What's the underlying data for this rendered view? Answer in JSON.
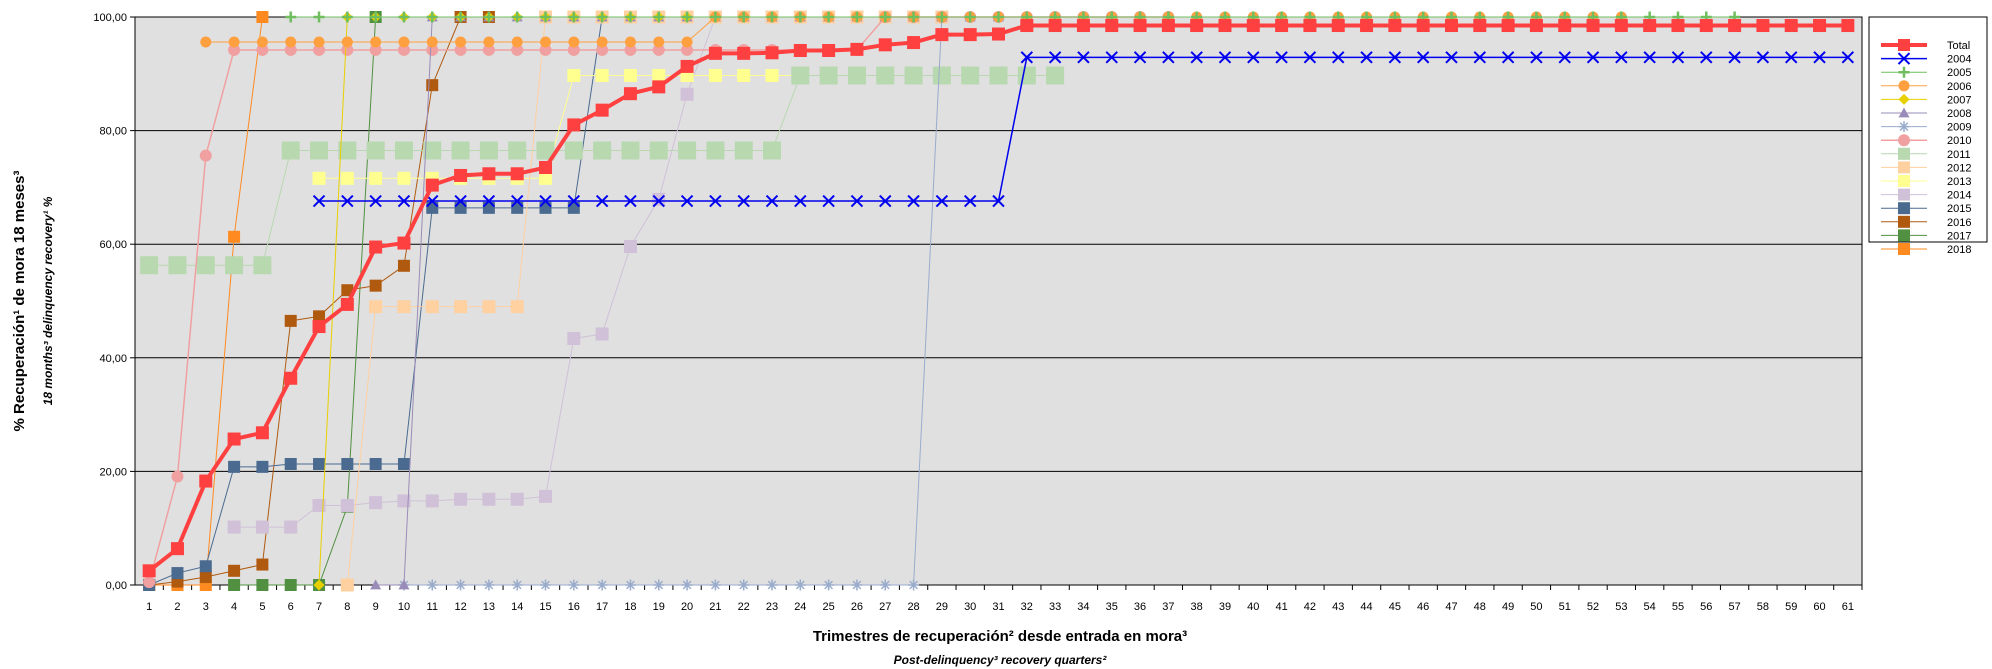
{
  "chart_data": {
    "type": "line",
    "title": "",
    "xlabel": "Trimestres de recuperación² desde entrada en mora³",
    "xlabel_en": "Post-delinquency³ recovery quarters²",
    "ylabel": "% Recuperación¹ de mora 18 meses³",
    "ylabel_en": "18 months³ delinquency recovery¹ %",
    "ylim": [
      0,
      100
    ],
    "yticks": [
      "0,00",
      "20,00",
      "40,00",
      "60,00",
      "80,00",
      "100,00"
    ],
    "grid": true,
    "legend_position": "right",
    "x": [
      1,
      2,
      3,
      4,
      5,
      6,
      7,
      8,
      9,
      10,
      11,
      12,
      13,
      14,
      15,
      16,
      17,
      18,
      19,
      20,
      21,
      22,
      23,
      24,
      25,
      26,
      27,
      28,
      29,
      30,
      31,
      32,
      33,
      34,
      35,
      36,
      37,
      38,
      39,
      40,
      41,
      42,
      43,
      44,
      45,
      46,
      47,
      48,
      49,
      50,
      51,
      52,
      53,
      54,
      55,
      56,
      57,
      58,
      59,
      60,
      61
    ],
    "series": [
      {
        "name": "Total",
        "color": "#ff4040",
        "marker": "square",
        "width": 4,
        "markerSize": 13,
        "x": [
          1,
          2,
          3,
          4,
          5,
          6,
          7,
          8,
          9,
          10,
          11,
          12,
          13,
          14,
          15,
          16,
          17,
          18,
          19,
          20,
          21,
          22,
          23,
          24,
          25,
          26,
          27,
          28,
          29,
          30,
          31,
          32,
          33,
          34,
          35,
          36,
          37,
          38,
          39,
          40,
          41,
          42,
          43,
          44,
          45,
          46,
          47,
          48,
          49,
          50,
          51,
          52,
          53,
          54,
          55,
          56,
          57,
          58,
          59,
          60,
          61
        ],
        "y": [
          2.5,
          6.4,
          18.3,
          25.7,
          26.8,
          36.4,
          45.5,
          49.4,
          59.5,
          60.2,
          70.4,
          72.1,
          72.4,
          72.4,
          73.5,
          81.0,
          83.6,
          86.5,
          87.7,
          91.3,
          93.6,
          93.6,
          93.7,
          94.1,
          94.1,
          94.3,
          95.1,
          95.5,
          96.9,
          96.9,
          97.0,
          98.5,
          98.5,
          98.5,
          98.5,
          98.5,
          98.5,
          98.5,
          98.5,
          98.5,
          98.5,
          98.5,
          98.5,
          98.5,
          98.5,
          98.5,
          98.5,
          98.5,
          98.5,
          98.5,
          98.5,
          98.5,
          98.5,
          98.5,
          98.5,
          98.5,
          98.5,
          98.5,
          98.5,
          98.5,
          98.5
        ]
      },
      {
        "name": "2004",
        "color": "#0000ee",
        "marker": "x",
        "width": 1.5,
        "markerSize": 11,
        "x": [
          7,
          8,
          9,
          10,
          11,
          12,
          13,
          14,
          15,
          16,
          17,
          18,
          19,
          20,
          21,
          22,
          23,
          24,
          25,
          26,
          27,
          28,
          29,
          30,
          31,
          32,
          33,
          34,
          35,
          36,
          37,
          38,
          39,
          40,
          41,
          42,
          43,
          44,
          45,
          46,
          47,
          48,
          49,
          50,
          51,
          52,
          53,
          54,
          55,
          56,
          57,
          58,
          59,
          60,
          61
        ],
        "y": [
          67.6,
          67.6,
          67.6,
          67.6,
          67.6,
          67.6,
          67.6,
          67.6,
          67.6,
          67.6,
          67.6,
          67.6,
          67.6,
          67.6,
          67.6,
          67.6,
          67.6,
          67.6,
          67.6,
          67.6,
          67.6,
          67.6,
          67.6,
          67.6,
          67.6,
          92.9,
          92.9,
          92.9,
          92.9,
          92.9,
          92.9,
          92.9,
          92.9,
          92.9,
          92.9,
          92.9,
          92.9,
          92.9,
          92.9,
          92.9,
          92.9,
          92.9,
          92.9,
          92.9,
          92.9,
          92.9,
          92.9,
          92.9,
          92.9,
          92.9,
          92.9,
          92.9,
          92.9,
          92.9,
          92.9
        ]
      },
      {
        "name": "2005",
        "color": "#6fbf5f",
        "marker": "plus",
        "width": 1,
        "markerSize": 11,
        "x": [
          6,
          7,
          8,
          9,
          10,
          11,
          12,
          13,
          14,
          15,
          16,
          17,
          18,
          19,
          20,
          21,
          22,
          23,
          24,
          25,
          26,
          27,
          28,
          29,
          30,
          31,
          32,
          33,
          34,
          35,
          36,
          37,
          38,
          39,
          40,
          41,
          42,
          43,
          44,
          45,
          46,
          47,
          48,
          49,
          50,
          51,
          52,
          53,
          54,
          55,
          56,
          57
        ],
        "y": [
          100,
          100,
          100,
          100,
          100,
          100,
          100,
          100,
          100,
          100,
          100,
          100,
          100,
          100,
          100,
          100,
          100,
          100,
          100,
          100,
          100,
          100,
          100,
          100,
          100,
          100,
          100,
          100,
          100,
          100,
          100,
          100,
          100,
          100,
          100,
          100,
          100,
          100,
          100,
          100,
          100,
          100,
          100,
          100,
          100,
          100,
          100,
          100,
          100,
          100,
          100,
          100
        ]
      },
      {
        "name": "2006",
        "color": "#ffa040",
        "marker": "circle",
        "width": 1,
        "markerSize": 11,
        "x": [
          3,
          4,
          5,
          6,
          7,
          8,
          9,
          10,
          11,
          12,
          13,
          14,
          15,
          16,
          17,
          18,
          19,
          20,
          21,
          22,
          23,
          24,
          25,
          26,
          27,
          28,
          29,
          30,
          31,
          32,
          33,
          34,
          35,
          36,
          37,
          38,
          39,
          40,
          41,
          42,
          43,
          44,
          45,
          46,
          47,
          48,
          49,
          50,
          51,
          52,
          53
        ],
        "y": [
          95.6,
          95.6,
          95.6,
          95.6,
          95.6,
          95.6,
          95.6,
          95.6,
          95.6,
          95.6,
          95.6,
          95.6,
          95.6,
          95.6,
          95.6,
          95.6,
          95.6,
          95.6,
          100,
          100,
          100,
          100,
          100,
          100,
          100,
          100,
          100,
          100,
          100,
          100,
          100,
          100,
          100,
          100,
          100,
          100,
          100,
          100,
          100,
          100,
          100,
          100,
          100,
          100,
          100,
          100,
          100,
          100,
          100,
          100,
          100
        ]
      },
      {
        "name": "2007",
        "color": "#e8d000",
        "marker": "diamond",
        "width": 1,
        "markerSize": 11,
        "x": [
          7,
          8,
          9,
          10,
          11,
          12,
          13,
          14,
          15,
          16,
          17,
          18,
          19,
          20,
          21,
          22,
          23,
          24,
          25,
          26,
          27,
          28,
          29,
          30,
          31,
          32,
          33,
          34,
          35,
          36,
          37,
          38,
          39,
          40,
          41,
          42,
          43,
          44,
          45,
          46,
          47,
          48,
          49
        ],
        "y": [
          0,
          100,
          100,
          100,
          100,
          100,
          100,
          100,
          100,
          100,
          100,
          100,
          100,
          100,
          100,
          100,
          100,
          100,
          100,
          100,
          100,
          100,
          100,
          100,
          100,
          100,
          100,
          100,
          100,
          100,
          100,
          100,
          100,
          100,
          100,
          100,
          100,
          100,
          100,
          100,
          100,
          100,
          100
        ]
      },
      {
        "name": "2008",
        "color": "#9a8cb8",
        "marker": "triangle",
        "width": 1,
        "markerSize": 11,
        "x": [
          9,
          10,
          11,
          12,
          13,
          14,
          15,
          16,
          17,
          18,
          19,
          20,
          21,
          22,
          23,
          24,
          25,
          26,
          27,
          28,
          29,
          30,
          31,
          32,
          33,
          34,
          35,
          36,
          37,
          38,
          39,
          40,
          41,
          42,
          43,
          44,
          45
        ],
        "y": [
          0,
          0,
          100,
          100,
          100,
          100,
          100,
          100,
          100,
          100,
          100,
          100,
          100,
          100,
          100,
          100,
          100,
          100,
          100,
          100,
          100,
          100,
          100,
          100,
          100,
          100,
          100,
          100,
          100,
          100,
          100,
          100,
          100,
          100,
          100,
          100,
          100
        ]
      },
      {
        "name": "2009",
        "color": "#9aaccc",
        "marker": "star",
        "width": 1,
        "markerSize": 11,
        "x": [
          10,
          11,
          12,
          13,
          14,
          15,
          16,
          17,
          18,
          19,
          20,
          21,
          22,
          23,
          24,
          25,
          26,
          27,
          28,
          29,
          30,
          31,
          32,
          33,
          34,
          35,
          36,
          37,
          38,
          39,
          40,
          41
        ],
        "y": [
          0,
          0,
          0,
          0,
          0,
          0,
          0,
          0,
          0,
          0,
          0,
          0,
          0,
          0,
          0,
          0,
          0,
          0,
          0,
          100,
          100,
          100,
          100,
          100,
          100,
          100,
          100,
          100,
          100,
          100,
          100,
          100
        ]
      },
      {
        "name": "2010",
        "color": "#f0a0a0",
        "marker": "circle",
        "width": 1.5,
        "markerSize": 12,
        "x": [
          1,
          2,
          3,
          4,
          5,
          6,
          7,
          8,
          9,
          10,
          11,
          12,
          13,
          14,
          15,
          16,
          17,
          18,
          19,
          20,
          21,
          22,
          23,
          24,
          25,
          26,
          27,
          28,
          29,
          30,
          31,
          32,
          33,
          34,
          35,
          36,
          37
        ],
        "y": [
          0.5,
          19.1,
          75.6,
          94.2,
          94.2,
          94.2,
          94.2,
          94.2,
          94.2,
          94.2,
          94.2,
          94.2,
          94.2,
          94.2,
          94.2,
          94.2,
          94.2,
          94.2,
          94.2,
          94.2,
          94.2,
          94.2,
          94.2,
          94.2,
          94.2,
          94.2,
          100,
          100,
          100,
          100,
          100,
          100,
          100,
          100,
          100,
          100,
          100
        ]
      },
      {
        "name": "2011",
        "color": "#b8d8b0",
        "marker": "square",
        "width": 1,
        "markerSize": 18,
        "x": [
          1,
          2,
          3,
          4,
          5,
          6,
          7,
          8,
          9,
          10,
          11,
          12,
          13,
          14,
          15,
          16,
          17,
          18,
          19,
          20,
          21,
          22,
          23,
          24,
          25,
          26,
          27,
          28,
          29,
          30,
          31,
          32,
          33
        ],
        "y": [
          56.3,
          56.3,
          56.3,
          56.3,
          56.3,
          76.5,
          76.5,
          76.5,
          76.5,
          76.5,
          76.5,
          76.5,
          76.5,
          76.5,
          76.5,
          76.5,
          76.5,
          76.5,
          76.5,
          76.5,
          76.5,
          76.5,
          76.5,
          89.7,
          89.7,
          89.7,
          89.7,
          89.7,
          89.7,
          89.7,
          89.7,
          89.7,
          89.7
        ]
      },
      {
        "name": "2012",
        "color": "#ffd0a0",
        "marker": "square",
        "width": 1,
        "markerSize": 13,
        "x": [
          8,
          9,
          10,
          11,
          12,
          13,
          14,
          15,
          16,
          17,
          18,
          19,
          20,
          21,
          22,
          23,
          24,
          25,
          26,
          27,
          28,
          29
        ],
        "y": [
          0,
          49.0,
          49.0,
          49.0,
          49.0,
          49.0,
          49.0,
          100,
          100,
          100,
          100,
          100,
          100,
          100,
          100,
          100,
          100,
          100,
          100,
          100,
          100,
          100
        ]
      },
      {
        "name": "2013",
        "color": "#ffff90",
        "marker": "square",
        "width": 1,
        "markerSize": 13,
        "x": [
          7,
          8,
          9,
          10,
          11,
          12,
          13,
          14,
          15,
          16,
          17,
          18,
          19,
          20,
          21,
          22,
          23,
          24,
          25
        ],
        "y": [
          71.6,
          71.6,
          71.6,
          71.6,
          71.6,
          71.6,
          71.6,
          71.6,
          71.6,
          89.7,
          89.7,
          89.7,
          89.7,
          89.7,
          89.7,
          89.7,
          89.7,
          89.7,
          89.7
        ]
      },
      {
        "name": "2014",
        "color": "#d0c0d8",
        "marker": "square",
        "width": 1,
        "markerSize": 13,
        "x": [
          4,
          5,
          6,
          7,
          8,
          9,
          10,
          11,
          12,
          13,
          14,
          15,
          16,
          17,
          18,
          19,
          20,
          21
        ],
        "y": [
          10.2,
          10.2,
          10.2,
          14.0,
          14.0,
          14.5,
          14.8,
          14.8,
          15.1,
          15.1,
          15.1,
          15.6,
          43.4,
          44.2,
          59.6,
          67.9,
          86.4,
          100
        ]
      },
      {
        "name": "2015",
        "color": "#4a6a90",
        "marker": "square",
        "width": 1,
        "markerSize": 12,
        "x": [
          1,
          2,
          3,
          4,
          5,
          6,
          7,
          8,
          9,
          10,
          11,
          12,
          13,
          14,
          15,
          16,
          17
        ],
        "y": [
          0,
          2.1,
          3.3,
          20.8,
          20.8,
          21.3,
          21.3,
          21.3,
          21.3,
          21.3,
          66.4,
          66.4,
          66.4,
          66.4,
          66.4,
          66.4,
          100
        ]
      },
      {
        "name": "2016",
        "color": "#b05a10",
        "marker": "square",
        "width": 1,
        "markerSize": 12,
        "x": [
          1,
          2,
          3,
          4,
          5,
          6,
          7,
          8,
          9,
          10,
          11,
          12,
          13
        ],
        "y": [
          0,
          0.6,
          1.4,
          2.5,
          3.6,
          46.5,
          47.3,
          51.9,
          52.7,
          56.2,
          88.0,
          100,
          100
        ]
      },
      {
        "name": "2017",
        "color": "#509040",
        "marker": "square",
        "width": 1,
        "markerSize": 12,
        "x": [
          4,
          5,
          6,
          7,
          8,
          9
        ],
        "y": [
          0,
          0,
          0,
          0,
          13.8,
          100
        ]
      },
      {
        "name": "2018",
        "color": "#ff8a20",
        "marker": "square",
        "width": 1,
        "markerSize": 12,
        "x": [
          1,
          2,
          3,
          4,
          5
        ],
        "y": [
          0,
          0,
          0,
          61.3,
          100
        ]
      }
    ]
  }
}
